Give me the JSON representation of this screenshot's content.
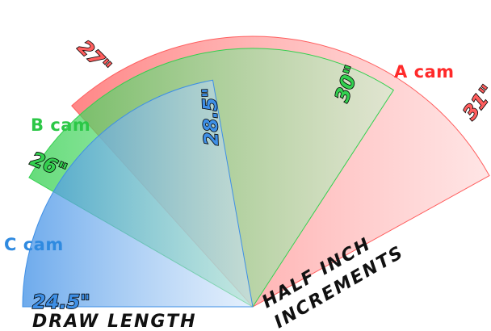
{
  "cams": [
    {
      "label": "A cam",
      "start_label": "27\"",
      "end_label": "31\"",
      "color": "#ff5e5e",
      "light_color": "#ffd0d0",
      "label_color": "#ff2a2a"
    },
    {
      "label": "B cam",
      "start_label": "26\"",
      "end_label": "30\"",
      "color": "#33d04f",
      "light_color": "#c8f3cf",
      "label_color": "#2cc747"
    },
    {
      "label": "C cam",
      "start_label": "24.5\"",
      "end_label": "28.5\"",
      "color": "#3e8fe6",
      "light_color": "#cfe3fa",
      "label_color": "#2f8ae0"
    }
  ],
  "captions": {
    "draw_length": "DRAW LENGTH",
    "half_inch_line1": "HALF INCH",
    "half_inch_line2": "INCREMENTS"
  }
}
